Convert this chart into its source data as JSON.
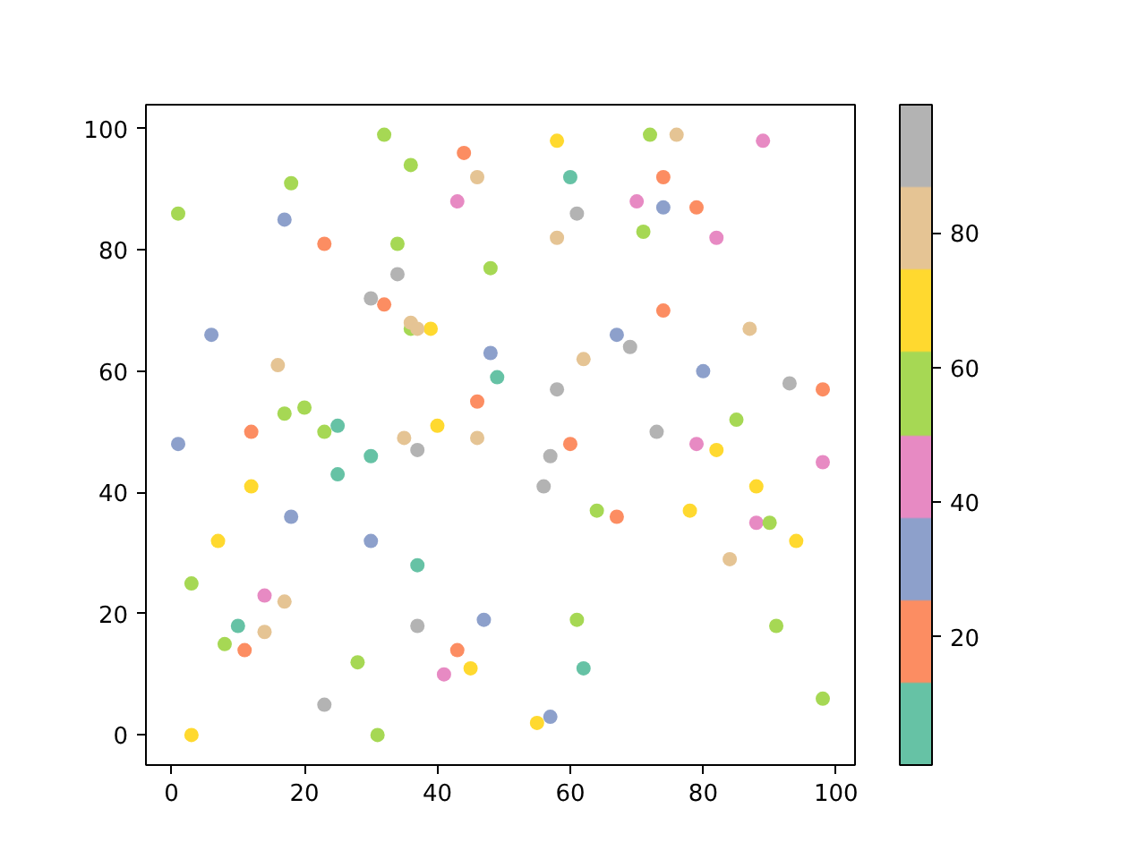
{
  "chart_data": {
    "type": "scatter",
    "marker": "circle",
    "series": [
      {
        "color": "#66c2a5",
        "x": [
          49,
          25,
          30,
          25,
          37,
          10,
          60,
          62
        ],
        "values": [
          59,
          51,
          46,
          43,
          28,
          18,
          92,
          11
        ]
      },
      {
        "color": "#fc8d62",
        "x": [
          44,
          23,
          32,
          46,
          12,
          11,
          43,
          74,
          79,
          74,
          98,
          60,
          67
        ],
        "values": [
          96,
          81,
          71,
          55,
          50,
          14,
          14,
          92,
          87,
          70,
          57,
          48,
          36
        ]
      },
      {
        "color": "#8da0cb",
        "x": [
          17,
          6,
          48,
          1,
          18,
          30,
          47,
          74,
          67,
          80,
          57
        ],
        "values": [
          85,
          66,
          63,
          48,
          36,
          32,
          19,
          87,
          66,
          60,
          3
        ]
      },
      {
        "color": "#e78ac3",
        "x": [
          43,
          14,
          41,
          89,
          70,
          82,
          79,
          98,
          88
        ],
        "values": [
          88,
          23,
          10,
          98,
          88,
          82,
          48,
          45,
          35
        ]
      },
      {
        "color": "#a6d854",
        "x": [
          32,
          36,
          18,
          1,
          34,
          48,
          36,
          20,
          17,
          23,
          3,
          8,
          28,
          31,
          72,
          71,
          85,
          64,
          90,
          61,
          91,
          98
        ],
        "values": [
          99,
          94,
          91,
          86,
          81,
          77,
          67,
          54,
          53,
          50,
          25,
          15,
          12,
          0,
          99,
          83,
          52,
          37,
          35,
          19,
          18,
          6
        ]
      },
      {
        "color": "#ffd92f",
        "x": [
          39,
          40,
          12,
          7,
          45,
          3,
          58,
          82,
          88,
          78,
          94,
          55
        ],
        "values": [
          67,
          51,
          41,
          32,
          11,
          0,
          98,
          47,
          41,
          37,
          32,
          2
        ]
      },
      {
        "color": "#e5c494",
        "x": [
          46,
          36,
          37,
          16,
          35,
          46,
          17,
          14,
          76,
          58,
          87,
          62,
          84
        ],
        "values": [
          92,
          68,
          67,
          61,
          49,
          49,
          22,
          17,
          99,
          82,
          67,
          62,
          29
        ]
      },
      {
        "color": "#b3b3b3",
        "x": [
          34,
          30,
          37,
          37,
          23,
          61,
          69,
          58,
          93,
          73,
          57,
          56
        ],
        "values": [
          76,
          72,
          47,
          18,
          5,
          86,
          64,
          57,
          58,
          50,
          46,
          41
        ]
      }
    ],
    "xlim": [
      -3.85,
      102.85
    ],
    "ylim": [
      -4.95,
      103.95
    ],
    "xticks": [
      0,
      20,
      40,
      60,
      80,
      100
    ],
    "yticks": [
      0,
      20,
      40,
      60,
      80,
      100
    ],
    "clim": [
      1,
      99
    ],
    "cticks": [
      20,
      40,
      60,
      80
    ]
  }
}
